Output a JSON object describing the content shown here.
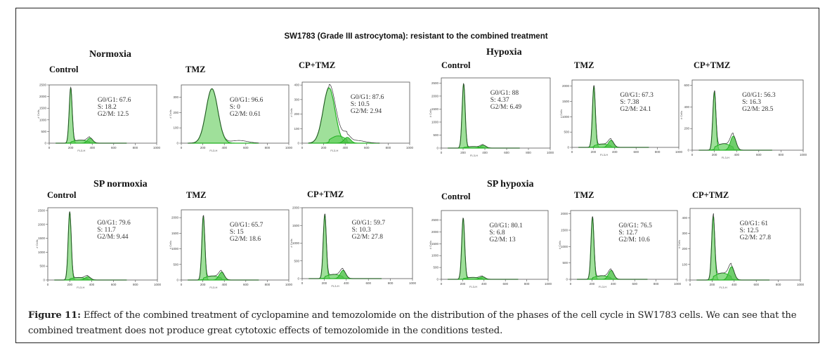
{
  "title": "SW1783 (Grade III astrocytoma): resistant to the combined treatment",
  "groups": [
    {
      "label": "Normoxia"
    },
    {
      "label": "Hypoxia"
    },
    {
      "label": "SP normoxia"
    },
    {
      "label": "SP hypoxia"
    }
  ],
  "caption": {
    "label": "Figure 11:",
    "text": " Effect of the combined treatment of cyclopamine and temozolomide on the distribution of the phases of the cell cycle in SW1783 cells. We can see that the combined treatment does not produce great cytotoxic effects of temozolomide in the conditions tested."
  },
  "colors": {
    "fill": "#9fe09a",
    "line": "#22b022",
    "trace": "#333333"
  },
  "chart_data": [
    {
      "type": "area",
      "group": "Normoxia",
      "title": "Control",
      "xlabel": "FL3-H",
      "ylabel": "# Cells",
      "xlim": [
        0,
        1000
      ],
      "ylim": [
        0,
        2500
      ],
      "xticks": [
        "0",
        "200",
        "400",
        "600",
        "800",
        "1000"
      ],
      "yticks": [
        "0",
        "500",
        "1000",
        "1500",
        "2000",
        "2500"
      ],
      "stats": [
        "G0/G1:  67.6",
        " S: 18.2",
        "G2/M: 12.5"
      ],
      "g1_peak": {
        "x": 200,
        "y": 2380
      },
      "g2_peak": {
        "x": 380,
        "y": 220
      },
      "s_level": 130
    },
    {
      "type": "area",
      "group": "Normoxia",
      "title": "TMZ",
      "xlabel": "FL3-H",
      "ylabel": "# Cells",
      "xlim": [
        0,
        1000
      ],
      "ylim": [
        0,
        380
      ],
      "xticks": [
        "0",
        "200",
        "400",
        "600",
        "800",
        "1000"
      ],
      "yticks": [
        "0",
        "100",
        "200",
        "300"
      ],
      "stats": [
        "G0/G1:  96.6",
        "S: 0",
        "G2/M: 0.61"
      ],
      "g1_peak": {
        "x": 285,
        "y": 355
      },
      "g2_peak": {
        "x": 0,
        "y": 0
      },
      "s_level": 0,
      "broad": true
    },
    {
      "type": "area",
      "group": "Normoxia",
      "title": "CP+TMZ",
      "xlabel": "FL3-H",
      "ylabel": "# Cells",
      "xlim": [
        0,
        1000
      ],
      "ylim": [
        0,
        420
      ],
      "xticks": [
        "0",
        "200",
        "400",
        "600",
        "800",
        "1000"
      ],
      "yticks": [
        "0",
        "100",
        "200",
        "300",
        "400"
      ],
      "stats": [
        "G0/G1: 87.6",
        "S: 10.5",
        "G2/M: 2.94"
      ],
      "g1_peak": {
        "x": 250,
        "y": 380
      },
      "g2_peak": {
        "x": 420,
        "y": 40
      },
      "s_level": 50,
      "broad": true
    },
    {
      "type": "area",
      "group": "Hypoxia",
      "title": "Control",
      "xlabel": "FL3-H",
      "ylabel": "# Cells",
      "xlim": [
        0,
        1000
      ],
      "ylim": [
        0,
        2700
      ],
      "xticks": [
        "0",
        "200",
        "400",
        "600",
        "800",
        "1000"
      ],
      "yticks": [
        "0",
        "500",
        "1000",
        "1500",
        "2000",
        "2500"
      ],
      "stats": [
        "G0/G1: 88",
        "S: 4.37",
        "G2/M: 6.49"
      ],
      "g1_peak": {
        "x": 205,
        "y": 2480
      },
      "g2_peak": {
        "x": 385,
        "y": 110
      },
      "s_level": 60
    },
    {
      "type": "area",
      "group": "Hypoxia",
      "title": "TMZ",
      "xlabel": "FL3-H",
      "ylabel": "# Cells",
      "xlim": [
        0,
        1000
      ],
      "ylim": [
        0,
        2200
      ],
      "xticks": [
        "0",
        "200",
        "400",
        "600",
        "800",
        "1000"
      ],
      "yticks": [
        "0",
        "500",
        "1000",
        "1500",
        "2000"
      ],
      "stats": [
        "G0/G1: 67.3",
        "S: 7.38",
        "G2/M: 24.1"
      ],
      "g1_peak": {
        "x": 205,
        "y": 2000
      },
      "g2_peak": {
        "x": 365,
        "y": 230
      },
      "s_level": 110
    },
    {
      "type": "area",
      "group": "Hypoxia",
      "title": "CP+TMZ",
      "xlabel": "FL3-H",
      "ylabel": "# Cells",
      "xlim": [
        0,
        1000
      ],
      "ylim": [
        0,
        650
      ],
      "xticks": [
        "0",
        "200",
        "400",
        "600",
        "800",
        "1000"
      ],
      "yticks": [
        "0",
        "200",
        "400",
        "600"
      ],
      "stats": [
        "G0/G1: 56.3",
        "S: 16.3",
        "G2/M: 28.5"
      ],
      "g1_peak": {
        "x": 200,
        "y": 540
      },
      "g2_peak": {
        "x": 370,
        "y": 130
      },
      "s_level": 60
    },
    {
      "type": "area",
      "group": "SP normoxia",
      "title": "Control",
      "xlabel": "FL3-H",
      "ylabel": "# Cells",
      "xlim": [
        0,
        1000
      ],
      "ylim": [
        0,
        2600
      ],
      "xticks": [
        "0",
        "200",
        "400",
        "600",
        "800",
        "1000"
      ],
      "yticks": [
        "0",
        "500",
        "1000",
        "1500",
        "2000",
        "2500"
      ],
      "stats": [
        "G0/G1: 79.6",
        "S: 11.7",
        "G2/M: 9.44"
      ],
      "g1_peak": {
        "x": 200,
        "y": 2450
      },
      "g2_peak": {
        "x": 365,
        "y": 120
      },
      "s_level": 90
    },
    {
      "type": "area",
      "group": "SP normoxia",
      "title": "TMZ",
      "xlabel": "FL3-H",
      "ylabel": "# Cells",
      "xlim": [
        0,
        1000
      ],
      "ylim": [
        0,
        2250
      ],
      "xticks": [
        "0",
        "200",
        "400",
        "600",
        "800",
        "1000"
      ],
      "yticks": [
        "0",
        "500",
        "1000",
        "1500",
        "2000"
      ],
      "stats": [
        "G0/G1: 65.7",
        "S: 15",
        "G2/M: 18.6"
      ],
      "g1_peak": {
        "x": 205,
        "y": 2050
      },
      "g2_peak": {
        "x": 375,
        "y": 250
      },
      "s_level": 130
    },
    {
      "type": "area",
      "group": "SP normoxia",
      "title": "CP+TMZ",
      "xlabel": "FL3-H",
      "ylabel": "# Cells",
      "xlim": [
        0,
        1000
      ],
      "ylim": [
        0,
        2000
      ],
      "xticks": [
        "0",
        "200",
        "400",
        "600",
        "800",
        "1000"
      ],
      "yticks": [
        "0",
        "500",
        "1000",
        "1500",
        "2000"
      ],
      "stats": [
        "G0/G1: 59.7",
        "S: 10.3",
        "G2/M: 27.8"
      ],
      "g1_peak": {
        "x": 205,
        "y": 1800
      },
      "g2_peak": {
        "x": 370,
        "y": 230
      },
      "s_level": 120
    },
    {
      "type": "area",
      "group": "SP hypoxia",
      "title": "Control",
      "xlabel": "FL3-H",
      "ylabel": "# Cells",
      "xlim": [
        0,
        1000
      ],
      "ylim": [
        0,
        2900
      ],
      "xticks": [
        "0",
        "200",
        "400",
        "600",
        "800",
        "1000"
      ],
      "yticks": [
        "0",
        "500",
        "1000",
        "1500",
        "2000",
        "2500"
      ],
      "stats": [
        "G0/G1: 80.1",
        "S: 6.8",
        "G2/M: 13"
      ],
      "g1_peak": {
        "x": 205,
        "y": 2580
      },
      "g2_peak": {
        "x": 385,
        "y": 110
      },
      "s_level": 80
    },
    {
      "type": "area",
      "group": "SP hypoxia",
      "title": "TMZ",
      "xlabel": "FL3-H",
      "ylabel": "# Cells",
      "xlim": [
        0,
        1000
      ],
      "ylim": [
        0,
        2100
      ],
      "xticks": [
        "0",
        "200",
        "400",
        "600",
        "800",
        "1000"
      ],
      "yticks": [
        "0",
        "500",
        "1000",
        "1500",
        "2000"
      ],
      "stats": [
        "G0/G1: 76.5",
        "S: 12.7",
        "G2/M: 10.6"
      ],
      "g1_peak": {
        "x": 205,
        "y": 1900
      },
      "g2_peak": {
        "x": 380,
        "y": 270
      },
      "s_level": 110
    },
    {
      "type": "area",
      "group": "SP hypoxia",
      "title": "CP+TMZ",
      "xlabel": "FL3-H",
      "ylabel": "# Cells",
      "xlim": [
        0,
        1000
      ],
      "ylim": [
        0,
        460
      ],
      "xticks": [
        "0",
        "200",
        "400",
        "600",
        "800",
        "1000"
      ],
      "yticks": [
        "0",
        "100",
        "200",
        "300",
        "400"
      ],
      "stats": [
        "G0/G1: 61",
        "S: 12.5",
        "G2/M: 27.8"
      ],
      "g1_peak": {
        "x": 210,
        "y": 410
      },
      "g2_peak": {
        "x": 375,
        "y": 85
      },
      "s_level": 45
    }
  ]
}
